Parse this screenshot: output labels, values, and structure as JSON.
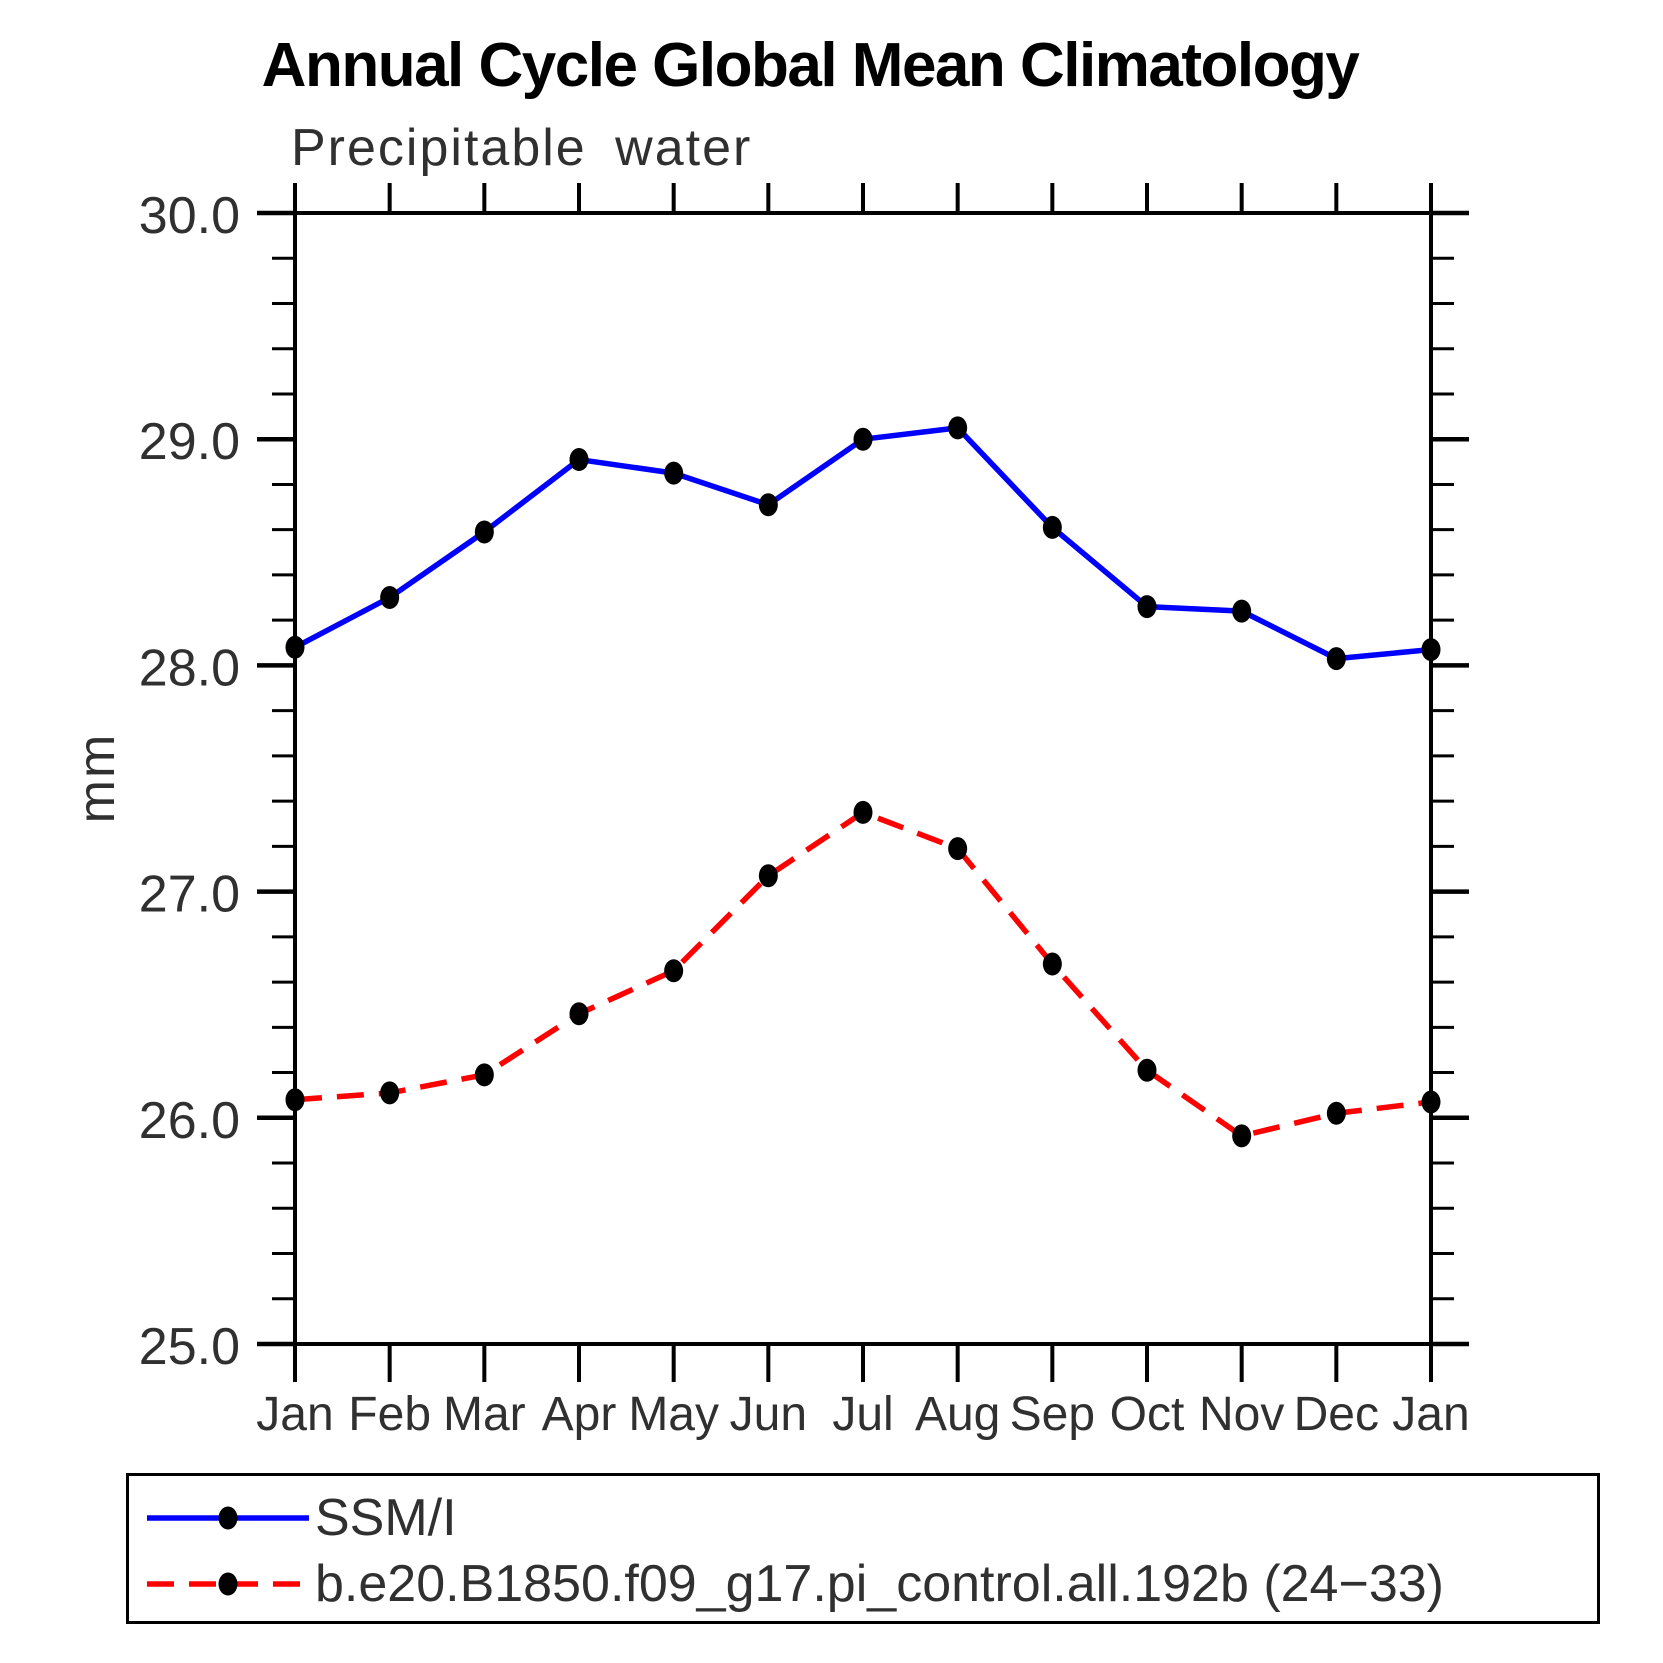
{
  "header": {
    "title": "Annual Cycle Global Mean Climatology"
  },
  "chart_data": {
    "type": "line",
    "title": "Annual Cycle Global Mean Climatology",
    "subtitle": "Precipitable water",
    "ylabel": "mm",
    "ylim": [
      25.0,
      30.0
    ],
    "ytick_interval": 1.0,
    "yminor_interval": 0.2,
    "ytick_labels": [
      "25.0",
      "26.0",
      "27.0",
      "28.0",
      "29.0",
      "30.0"
    ],
    "categories": [
      "Jan",
      "Feb",
      "Mar",
      "Apr",
      "May",
      "Jun",
      "Jul",
      "Aug",
      "Sep",
      "Oct",
      "Nov",
      "Dec",
      "Jan"
    ],
    "grid": false,
    "legend_position": "bottom-left-box",
    "marker": "filled-dot",
    "marker_color": "#000000",
    "axis_color": "#000000",
    "series": [
      {
        "name": "SSM/I",
        "color": "#0000ff",
        "line_style": "solid",
        "values": [
          28.08,
          28.3,
          28.59,
          28.91,
          28.85,
          28.71,
          29.0,
          29.05,
          28.61,
          28.26,
          28.24,
          28.03,
          28.07
        ]
      },
      {
        "name": "b.e20.B1850.f09_g17.pi_control.all.192b (24−33)",
        "color": "#ff0000",
        "line_style": "dashed",
        "values": [
          26.08,
          26.11,
          26.19,
          26.46,
          26.65,
          27.07,
          27.35,
          27.19,
          26.68,
          26.21,
          25.92,
          26.02,
          26.07
        ]
      }
    ]
  }
}
